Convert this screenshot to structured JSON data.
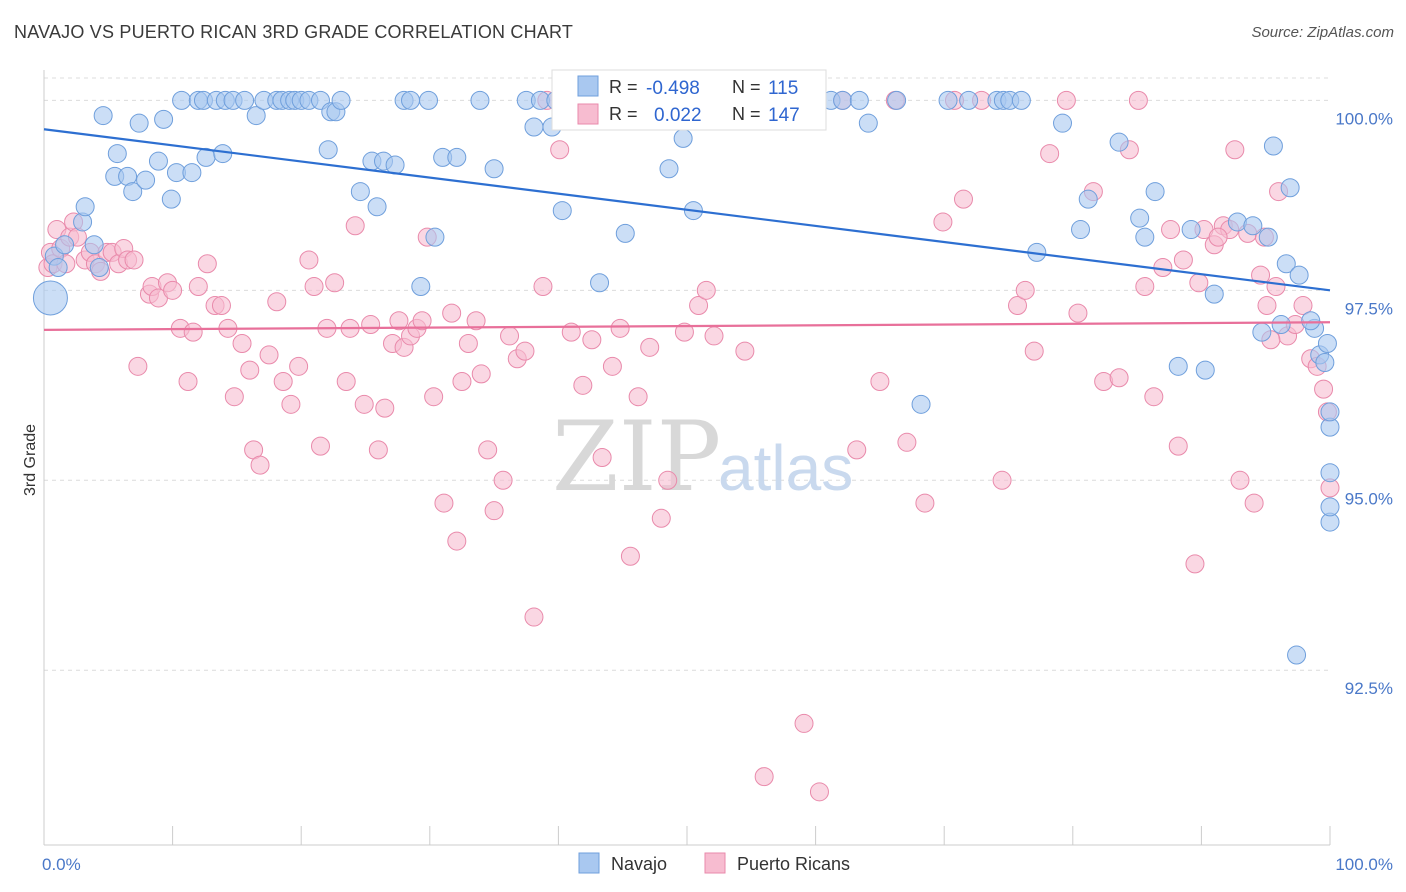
{
  "header": {
    "title": "NAVAJO VS PUERTO RICAN 3RD GRADE CORRELATION CHART",
    "source": "Source: ZipAtlas.com"
  },
  "legend": {
    "navajo": {
      "r_label": "R =",
      "r_value": "-0.498",
      "n_label": "N =",
      "n_value": "115"
    },
    "puerto": {
      "r_label": "R =",
      "r_value": "0.022",
      "n_label": "N =",
      "n_value": "147"
    }
  },
  "watermark": {
    "zip": "ZIP",
    "atlas": "atlas"
  },
  "chart_data": {
    "type": "scatter",
    "ylabel": "3rd Grade",
    "xlim": [
      0,
      100
    ],
    "ylim": [
      90.2,
      100.4
    ],
    "x_tick_labels": [
      "0.0%",
      "100.0%"
    ],
    "y_ticks": [
      {
        "value": 100.0,
        "label": "100.0%"
      },
      {
        "value": 97.5,
        "label": "97.5%"
      },
      {
        "value": 95.0,
        "label": "95.0%"
      },
      {
        "value": 92.5,
        "label": "92.5%"
      }
    ],
    "grid": "horizontal dashed",
    "legend_position": "bottom-center",
    "colors": {
      "navajo_fill": "#a9c8f0",
      "navajo_stroke": "#6f9fdc",
      "navajo_line": "#2d6fd1",
      "puerto_fill": "#f7bcd0",
      "puerto_stroke": "#e98aab",
      "puerto_line": "#e8709a"
    },
    "series": [
      {
        "name": "Navajo",
        "trend": {
          "x": [
            0,
            100
          ],
          "y": [
            99.62,
            97.5
          ]
        },
        "points": [
          [
            0.5,
            97.4
          ],
          [
            0.8,
            97.95
          ],
          [
            1.1,
            97.8
          ],
          [
            1.6,
            98.1
          ],
          [
            3.0,
            98.4
          ],
          [
            3.2,
            98.6
          ],
          [
            3.9,
            98.1
          ],
          [
            4.3,
            97.8
          ],
          [
            4.6,
            99.8
          ],
          [
            5.5,
            99.0
          ],
          [
            5.7,
            99.3
          ],
          [
            6.5,
            99.0
          ],
          [
            6.9,
            98.8
          ],
          [
            7.4,
            99.7
          ],
          [
            7.9,
            98.95
          ],
          [
            8.9,
            99.2
          ],
          [
            9.3,
            99.75
          ],
          [
            9.9,
            98.7
          ],
          [
            10.3,
            99.05
          ],
          [
            10.7,
            100.0
          ],
          [
            11.5,
            99.05
          ],
          [
            12.0,
            100.0
          ],
          [
            12.4,
            100.0
          ],
          [
            12.6,
            99.25
          ],
          [
            13.4,
            100.0
          ],
          [
            13.9,
            99.3
          ],
          [
            14.1,
            100.0
          ],
          [
            14.7,
            100.0
          ],
          [
            15.6,
            100.0
          ],
          [
            16.5,
            99.8
          ],
          [
            17.1,
            100.0
          ],
          [
            18.1,
            100.0
          ],
          [
            18.5,
            100.0
          ],
          [
            19.1,
            100.0
          ],
          [
            19.5,
            100.0
          ],
          [
            20.0,
            100.0
          ],
          [
            20.6,
            100.0
          ],
          [
            21.5,
            100.0
          ],
          [
            22.1,
            99.35
          ],
          [
            22.3,
            99.85
          ],
          [
            22.7,
            99.85
          ],
          [
            23.1,
            100.0
          ],
          [
            24.6,
            98.8
          ],
          [
            25.5,
            99.2
          ],
          [
            25.9,
            98.6
          ],
          [
            26.4,
            99.2
          ],
          [
            27.3,
            99.15
          ],
          [
            28.0,
            100.0
          ],
          [
            28.5,
            100.0
          ],
          [
            29.3,
            97.55
          ],
          [
            29.9,
            100.0
          ],
          [
            30.4,
            98.2
          ],
          [
            31.0,
            99.25
          ],
          [
            32.1,
            99.25
          ],
          [
            33.9,
            100.0
          ],
          [
            35.0,
            99.1
          ],
          [
            37.5,
            100.0
          ],
          [
            38.1,
            99.65
          ],
          [
            38.6,
            100.0
          ],
          [
            39.5,
            99.65
          ],
          [
            39.8,
            100.0
          ],
          [
            40.3,
            98.55
          ],
          [
            40.8,
            100.0
          ],
          [
            41.2,
            100.0
          ],
          [
            43.2,
            97.6
          ],
          [
            43.7,
            100.0
          ],
          [
            44.3,
            100.0
          ],
          [
            45.2,
            98.25
          ],
          [
            47.3,
            100.0
          ],
          [
            47.8,
            100.0
          ],
          [
            48.6,
            99.1
          ],
          [
            49.7,
            99.5
          ],
          [
            50.5,
            98.55
          ],
          [
            52.0,
            100.0
          ],
          [
            53.2,
            100.0
          ],
          [
            55.5,
            100.0
          ],
          [
            57.6,
            100.0
          ],
          [
            58.1,
            100.0
          ],
          [
            58.5,
            100.0
          ],
          [
            59.2,
            100.0
          ],
          [
            60.0,
            100.0
          ],
          [
            61.2,
            100.0
          ],
          [
            62.1,
            100.0
          ],
          [
            63.4,
            100.0
          ],
          [
            64.1,
            99.7
          ],
          [
            66.3,
            100.0
          ],
          [
            68.2,
            96.0
          ],
          [
            70.3,
            100.0
          ],
          [
            71.9,
            100.0
          ],
          [
            74.1,
            100.0
          ],
          [
            74.6,
            100.0
          ],
          [
            75.1,
            100.0
          ],
          [
            76.0,
            100.0
          ],
          [
            77.2,
            98.0
          ],
          [
            79.2,
            99.7
          ],
          [
            80.6,
            98.3
          ],
          [
            81.2,
            98.7
          ],
          [
            83.6,
            99.45
          ],
          [
            85.2,
            98.45
          ],
          [
            85.6,
            98.2
          ],
          [
            86.4,
            98.8
          ],
          [
            88.2,
            96.5
          ],
          [
            89.2,
            98.3
          ],
          [
            90.3,
            96.45
          ],
          [
            91.0,
            97.45
          ],
          [
            92.8,
            98.4
          ],
          [
            94.0,
            98.35
          ],
          [
            94.7,
            96.95
          ],
          [
            95.2,
            98.2
          ],
          [
            96.6,
            97.85
          ],
          [
            97.6,
            97.7
          ],
          [
            98.8,
            97.0
          ],
          [
            99.2,
            96.65
          ],
          [
            99.6,
            96.55
          ],
          [
            98.5,
            97.1
          ],
          [
            99.8,
            96.8
          ],
          [
            100.0,
            95.7
          ],
          [
            100.0,
            95.9
          ],
          [
            100.0,
            94.45
          ],
          [
            100.0,
            95.1
          ],
          [
            100.0,
            94.65
          ],
          [
            97.4,
            92.7
          ],
          [
            96.2,
            97.05
          ],
          [
            95.6,
            99.4
          ],
          [
            96.9,
            98.85
          ]
        ]
      },
      {
        "name": "Puerto Ricans",
        "trend": {
          "x": [
            0,
            100
          ],
          "y": [
            96.98,
            97.08
          ]
        },
        "points": [
          [
            0.3,
            97.8
          ],
          [
            0.5,
            98.0
          ],
          [
            0.7,
            97.85
          ],
          [
            1.0,
            98.3
          ],
          [
            1.3,
            98.05
          ],
          [
            1.7,
            97.85
          ],
          [
            2.0,
            98.2
          ],
          [
            2.3,
            98.4
          ],
          [
            2.6,
            98.2
          ],
          [
            3.2,
            97.9
          ],
          [
            3.6,
            98.0
          ],
          [
            4.0,
            97.85
          ],
          [
            4.4,
            97.75
          ],
          [
            4.9,
            98.0
          ],
          [
            5.3,
            98.0
          ],
          [
            5.8,
            97.85
          ],
          [
            6.2,
            98.05
          ],
          [
            6.5,
            97.9
          ],
          [
            7.0,
            97.9
          ],
          [
            7.3,
            96.5
          ],
          [
            8.2,
            97.45
          ],
          [
            8.4,
            97.55
          ],
          [
            8.9,
            97.4
          ],
          [
            9.6,
            97.6
          ],
          [
            10.0,
            97.5
          ],
          [
            10.6,
            97.0
          ],
          [
            11.2,
            96.3
          ],
          [
            11.6,
            96.95
          ],
          [
            12.0,
            97.55
          ],
          [
            12.7,
            97.85
          ],
          [
            13.3,
            97.3
          ],
          [
            13.8,
            97.3
          ],
          [
            14.3,
            97.0
          ],
          [
            14.8,
            96.1
          ],
          [
            15.4,
            96.8
          ],
          [
            16.0,
            96.45
          ],
          [
            16.3,
            95.4
          ],
          [
            16.8,
            95.2
          ],
          [
            17.5,
            96.65
          ],
          [
            18.1,
            97.35
          ],
          [
            18.6,
            96.3
          ],
          [
            19.2,
            96.0
          ],
          [
            19.8,
            96.5
          ],
          [
            20.6,
            97.9
          ],
          [
            21.0,
            97.55
          ],
          [
            21.5,
            95.45
          ],
          [
            22.0,
            97.0
          ],
          [
            22.6,
            97.6
          ],
          [
            23.5,
            96.3
          ],
          [
            23.8,
            97.0
          ],
          [
            24.2,
            98.35
          ],
          [
            24.9,
            96.0
          ],
          [
            25.4,
            97.05
          ],
          [
            26.0,
            95.4
          ],
          [
            26.5,
            95.95
          ],
          [
            27.1,
            96.8
          ],
          [
            27.6,
            97.1
          ],
          [
            28.0,
            96.75
          ],
          [
            28.5,
            96.9
          ],
          [
            29.0,
            97.0
          ],
          [
            29.4,
            97.1
          ],
          [
            29.8,
            98.2
          ],
          [
            30.3,
            96.1
          ],
          [
            31.1,
            94.7
          ],
          [
            31.7,
            97.2
          ],
          [
            32.1,
            94.2
          ],
          [
            32.5,
            96.3
          ],
          [
            33.0,
            96.8
          ],
          [
            33.6,
            97.1
          ],
          [
            34.0,
            96.4
          ],
          [
            34.5,
            95.4
          ],
          [
            35.0,
            94.6
          ],
          [
            35.7,
            95.0
          ],
          [
            36.2,
            96.9
          ],
          [
            36.8,
            96.6
          ],
          [
            37.4,
            96.7
          ],
          [
            38.1,
            93.2
          ],
          [
            38.8,
            97.55
          ],
          [
            39.1,
            100.0
          ],
          [
            40.1,
            99.35
          ],
          [
            41.0,
            96.95
          ],
          [
            41.9,
            96.25
          ],
          [
            42.6,
            96.85
          ],
          [
            43.4,
            95.3
          ],
          [
            44.2,
            96.5
          ],
          [
            44.8,
            97.0
          ],
          [
            45.6,
            94.0
          ],
          [
            46.2,
            96.1
          ],
          [
            47.1,
            96.75
          ],
          [
            48.0,
            94.5
          ],
          [
            48.5,
            95.0
          ],
          [
            49.8,
            96.95
          ],
          [
            50.9,
            97.3
          ],
          [
            51.5,
            97.5
          ],
          [
            52.1,
            96.9
          ],
          [
            53.3,
            100.0
          ],
          [
            54.5,
            96.7
          ],
          [
            55.1,
            100.0
          ],
          [
            56.0,
            91.1
          ],
          [
            57.2,
            100.0
          ],
          [
            59.1,
            91.8
          ],
          [
            60.3,
            90.9
          ],
          [
            62.1,
            100.0
          ],
          [
            63.2,
            95.4
          ],
          [
            65.0,
            96.3
          ],
          [
            66.2,
            100.0
          ],
          [
            67.1,
            95.5
          ],
          [
            68.5,
            94.7
          ],
          [
            69.9,
            98.4
          ],
          [
            70.8,
            100.0
          ],
          [
            71.5,
            98.7
          ],
          [
            72.9,
            100.0
          ],
          [
            74.5,
            95.0
          ],
          [
            75.7,
            97.3
          ],
          [
            76.3,
            97.5
          ],
          [
            77.0,
            96.7
          ],
          [
            78.2,
            99.3
          ],
          [
            79.5,
            100.0
          ],
          [
            80.4,
            97.2
          ],
          [
            81.6,
            98.8
          ],
          [
            82.4,
            96.3
          ],
          [
            83.6,
            96.35
          ],
          [
            84.4,
            99.35
          ],
          [
            85.1,
            100.0
          ],
          [
            85.6,
            97.55
          ],
          [
            86.3,
            96.1
          ],
          [
            87.0,
            97.8
          ],
          [
            87.6,
            98.3
          ],
          [
            88.2,
            95.45
          ],
          [
            88.6,
            97.9
          ],
          [
            89.5,
            93.9
          ],
          [
            90.2,
            98.3
          ],
          [
            91.0,
            98.1
          ],
          [
            91.7,
            98.35
          ],
          [
            92.2,
            98.3
          ],
          [
            93.0,
            95.0
          ],
          [
            93.6,
            98.25
          ],
          [
            94.1,
            94.7
          ],
          [
            94.6,
            97.7
          ],
          [
            95.1,
            97.3
          ],
          [
            95.8,
            97.55
          ],
          [
            96.7,
            96.9
          ],
          [
            97.3,
            97.05
          ],
          [
            97.9,
            97.3
          ],
          [
            98.5,
            96.6
          ],
          [
            99.0,
            96.5
          ],
          [
            99.5,
            96.2
          ],
          [
            100.0,
            94.9
          ],
          [
            99.8,
            95.9
          ],
          [
            96.0,
            98.8
          ],
          [
            95.4,
            96.85
          ],
          [
            94.9,
            98.2
          ],
          [
            92.6,
            99.35
          ],
          [
            91.3,
            98.2
          ],
          [
            89.8,
            97.6
          ]
        ]
      }
    ]
  },
  "bottom_legend": {
    "navajo": "Navajo",
    "puerto": "Puerto Ricans"
  }
}
